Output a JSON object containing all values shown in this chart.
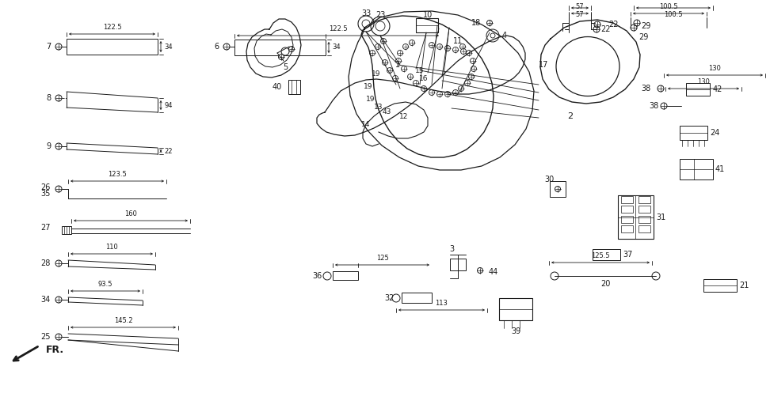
{
  "bg_color": "#ffffff",
  "line_color": "#1a1a1a",
  "figsize": [
    9.72,
    4.97
  ],
  "dpi": 100
}
